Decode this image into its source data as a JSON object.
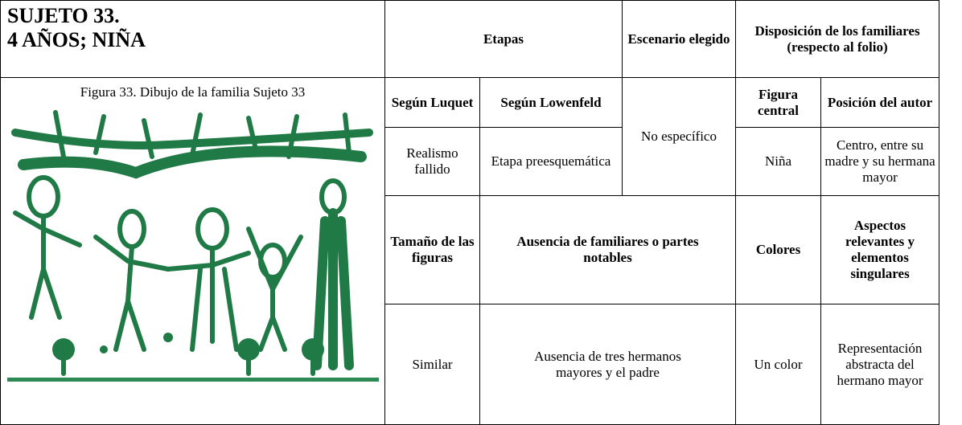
{
  "header": {
    "title_line1": "SUJETO 33.",
    "title_line2": "4 AÑOS; NIÑA"
  },
  "figure": {
    "caption": "Figura 33. Dibujo de la familia Sujeto 33"
  },
  "table": {
    "head": {
      "etapas": "Etapas",
      "escenario": "Escenario elegido",
      "disposicion": "Disposición de los familiares",
      "disposicion_note": "(respecto al folio)"
    },
    "subhead": {
      "luquet": "Según Luquet",
      "lowenfeld": "Según Lowenfeld",
      "figura_central": "Figura central",
      "posicion_autor": "Posición del autor"
    },
    "row1": {
      "luquet": "Realismo fallido",
      "lowenfeld": "Etapa preesquemática",
      "escenario": "No específico",
      "figura_central": "Niña",
      "posicion_autor": "Centro, entre su madre y su hermana mayor"
    },
    "subhead2": {
      "tamano": "Tamaño de las figuras",
      "ausencia": "Ausencia de familiares o partes notables",
      "colores": "Colores",
      "aspectos": "Aspectos relevantes y elementos singulares"
    },
    "row2": {
      "tamano": "Similar",
      "ausencia": "Ausencia de tres hermanos mayores y el padre",
      "colores": "Un color",
      "aspectos": "Representación abstracta del hermano mayor"
    }
  }
}
